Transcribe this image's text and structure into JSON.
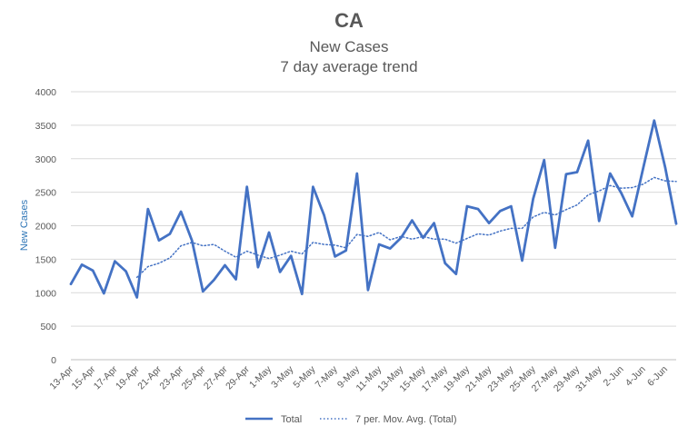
{
  "chart_data": {
    "type": "line",
    "title": "CA",
    "subtitle_1": "New Cases",
    "subtitle_2": "7 day average trend",
    "ylabel": "New Cases",
    "xlabel": "",
    "ylim": [
      0,
      4000
    ],
    "yticks": [
      0,
      500,
      1000,
      1500,
      2000,
      2500,
      3000,
      3500,
      4000
    ],
    "grid": true,
    "legend_position": "bottom",
    "x": [
      "13-Apr",
      "14-Apr",
      "15-Apr",
      "16-Apr",
      "17-Apr",
      "18-Apr",
      "19-Apr",
      "20-Apr",
      "21-Apr",
      "22-Apr",
      "23-Apr",
      "24-Apr",
      "25-Apr",
      "26-Apr",
      "27-Apr",
      "28-Apr",
      "29-Apr",
      "30-Apr",
      "1-May",
      "2-May",
      "3-May",
      "4-May",
      "5-May",
      "6-May",
      "7-May",
      "8-May",
      "9-May",
      "10-May",
      "11-May",
      "12-May",
      "13-May",
      "14-May",
      "15-May",
      "16-May",
      "17-May",
      "18-May",
      "19-May",
      "20-May",
      "21-May",
      "22-May",
      "23-May",
      "24-May",
      "25-May",
      "26-May",
      "27-May",
      "28-May",
      "29-May",
      "30-May",
      "31-May",
      "1-Jun",
      "2-Jun",
      "3-Jun",
      "4-Jun",
      "5-Jun",
      "6-Jun",
      "7-Jun"
    ],
    "xtick_labels": [
      "13-Apr",
      "15-Apr",
      "17-Apr",
      "19-Apr",
      "21-Apr",
      "23-Apr",
      "25-Apr",
      "27-Apr",
      "29-Apr",
      "1-May",
      "3-May",
      "5-May",
      "7-May",
      "9-May",
      "11-May",
      "13-May",
      "15-May",
      "17-May",
      "19-May",
      "21-May",
      "23-May",
      "25-May",
      "27-May",
      "29-May",
      "31-May",
      "2-Jun",
      "4-Jun",
      "6-Jun"
    ],
    "series": [
      {
        "name": "Total",
        "color": "#4472c4",
        "style": "solid",
        "values": [
          1130,
          1420,
          1330,
          990,
          1470,
          1320,
          930,
          2250,
          1780,
          1880,
          2210,
          1780,
          1020,
          1190,
          1410,
          1200,
          2580,
          1380,
          1900,
          1310,
          1550,
          980,
          2580,
          2160,
          1540,
          1630,
          2780,
          1040,
          1720,
          1660,
          1820,
          2080,
          1820,
          2040,
          1440,
          1280,
          2290,
          2250,
          2040,
          2220,
          2290,
          1480,
          2400,
          2980,
          1670,
          2770,
          2800,
          3270,
          2070,
          2780,
          2490,
          2140,
          2860,
          3570,
          2870,
          2030
        ]
      },
      {
        "name": "7 per. Mov. Avg. (Total)",
        "color": "#4472c4",
        "style": "dotted",
        "values": [
          null,
          null,
          null,
          null,
          null,
          null,
          1230,
          1390,
          1440,
          1520,
          1700,
          1750,
          1700,
          1720,
          1620,
          1530,
          1620,
          1560,
          1510,
          1560,
          1620,
          1580,
          1750,
          1720,
          1710,
          1670,
          1870,
          1840,
          1900,
          1790,
          1840,
          1800,
          1840,
          1800,
          1800,
          1740,
          1810,
          1880,
          1860,
          1920,
          1960,
          1960,
          2130,
          2200,
          2160,
          2240,
          2310,
          2460,
          2520,
          2600,
          2560,
          2570,
          2620,
          2720,
          2670,
          2660
        ]
      }
    ]
  }
}
